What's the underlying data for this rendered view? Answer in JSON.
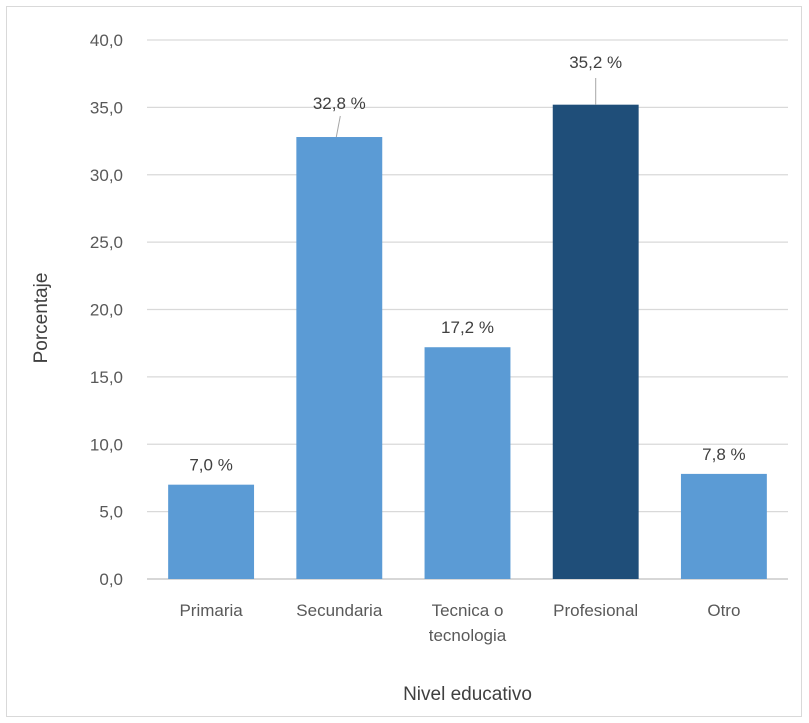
{
  "chart_data": {
    "type": "bar",
    "title": "",
    "xlabel": "Nivel educativo",
    "ylabel": "Porcentaje",
    "ylim": [
      0,
      40
    ],
    "ytick_step": 5,
    "ytick_labels": [
      "0,0",
      "5,0",
      "10,0",
      "15,0",
      "20,0",
      "25,0",
      "30,0",
      "35,0",
      "40,0"
    ],
    "categories": [
      [
        "Primaria"
      ],
      [
        "Secundaria"
      ],
      [
        "Tecnica o",
        "tecnologia"
      ],
      [
        "Profesional"
      ],
      [
        "Otro"
      ]
    ],
    "values": [
      7.0,
      32.8,
      17.2,
      35.2,
      7.8
    ],
    "data_labels": [
      "7,0 %",
      "32,8 %",
      "17,2 %",
      "35,2 %",
      "7,8 %"
    ],
    "grid": true,
    "legend": "none",
    "colors": {
      "bar": "#5b9bd5",
      "highlight_bar": "#1f4e79",
      "grid": "#d9d9d9",
      "axis": "#bfbfbf"
    },
    "highlight_index": 3
  }
}
